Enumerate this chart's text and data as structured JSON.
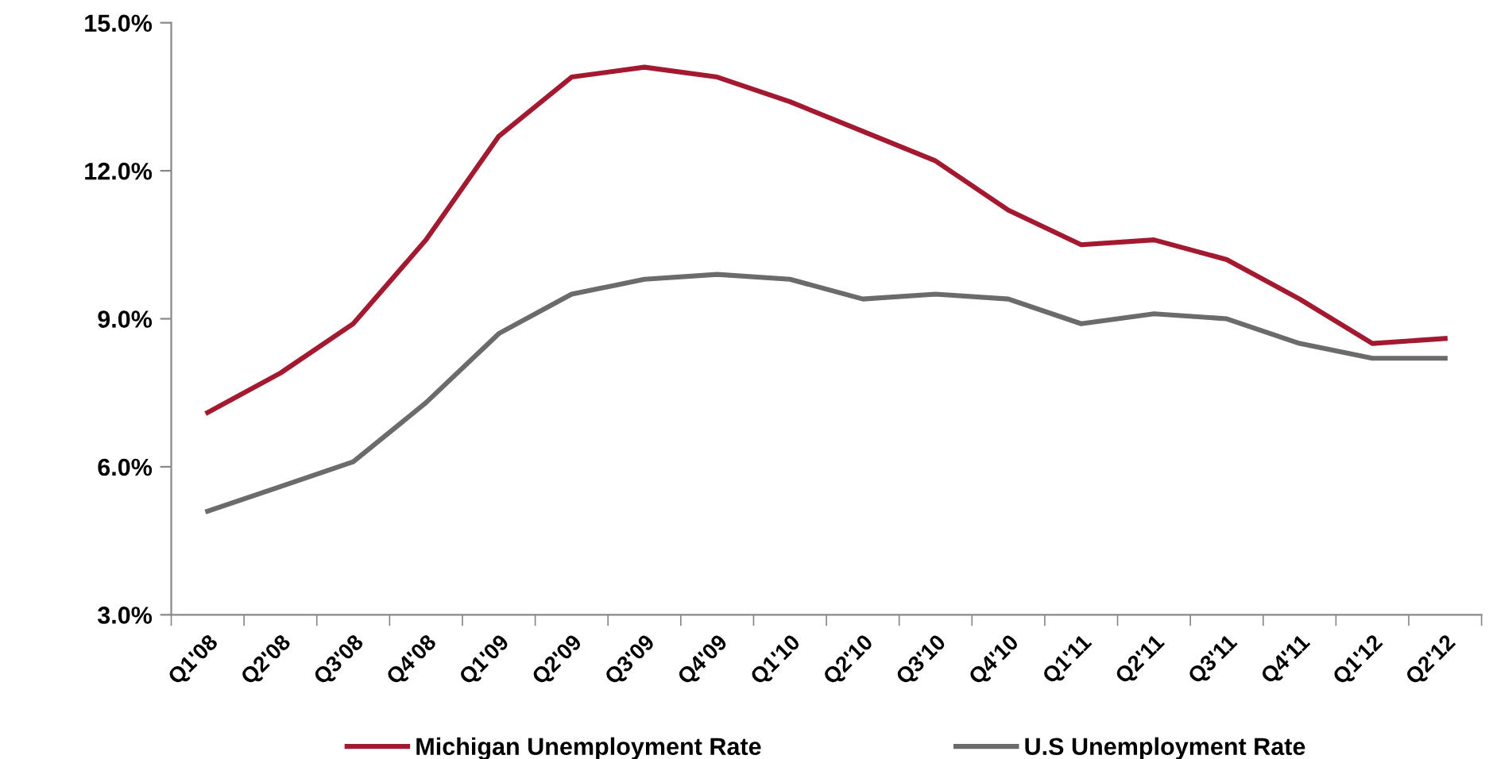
{
  "chart_data": {
    "type": "line",
    "categories": [
      "Q1'08",
      "Q2'08",
      "Q3'08",
      "Q4'08",
      "Q1'09",
      "Q2'09",
      "Q3'09",
      "Q4'09",
      "Q1'10",
      "Q2'10",
      "Q3'10",
      "Q4'10",
      "Q1'11",
      "Q2'11",
      "Q3'11",
      "Q4'11",
      "Q1'12",
      "Q2'12"
    ],
    "series": [
      {
        "name": "Michigan Unemployment Rate",
        "color": "#a3192f",
        "values": [
          7.1,
          7.9,
          8.9,
          10.6,
          12.7,
          13.9,
          14.1,
          13.9,
          13.4,
          12.8,
          12.2,
          11.2,
          10.5,
          10.6,
          10.2,
          9.4,
          8.5,
          8.6
        ]
      },
      {
        "name": "U.S Unemployment Rate",
        "color": "#6b6b6b",
        "values": [
          5.1,
          5.6,
          6.1,
          7.3,
          8.7,
          9.5,
          9.8,
          9.9,
          9.8,
          9.4,
          9.5,
          9.4,
          8.9,
          9.1,
          9.0,
          8.5,
          8.2,
          8.2
        ]
      }
    ],
    "ylim": [
      3,
      15
    ],
    "yticks": [
      {
        "value": 3,
        "label": "3.0%"
      },
      {
        "value": 6,
        "label": "6.0%"
      },
      {
        "value": 9,
        "label": "9.0%"
      },
      {
        "value": 12,
        "label": "12.0%"
      },
      {
        "value": 15,
        "label": "15.0%"
      }
    ],
    "grid": false,
    "legend": "bottom",
    "marker": "none",
    "line_style": "solid"
  }
}
